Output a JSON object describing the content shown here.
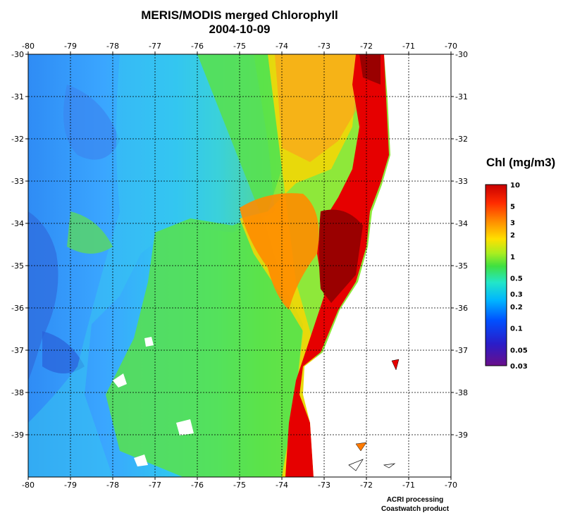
{
  "title": {
    "line1": "MERIS/MODIS merged Chlorophyll",
    "line2": "2004-10-09"
  },
  "map": {
    "lon_ticks": [
      "-80",
      "-79",
      "-78",
      "-77",
      "-76",
      "-75",
      "-74",
      "-73",
      "-72",
      "-71",
      "-70"
    ],
    "lat_ticks": [
      "-30",
      "-31",
      "-32",
      "-33",
      "-34",
      "-35",
      "-36",
      "-37",
      "-38",
      "-39"
    ],
    "colors": {
      "ocean_low": "#3aa8ff",
      "ocean_mid": "#2fe0e8",
      "green": "#58e24a",
      "yellow": "#ffd400",
      "orange": "#ff7a00",
      "red": "#e60000",
      "dark_red": "#9a0000",
      "land": "#ffffff"
    }
  },
  "legend": {
    "title": "Chl (mg/m3)",
    "labels": [
      "10",
      "5",
      "3",
      "2",
      "1",
      "0.5",
      "0.3",
      "0.2",
      "0.1",
      "0.05",
      "0.03"
    ]
  },
  "credits": {
    "line1": "ACRI processing",
    "line2": "Coastwatch product"
  }
}
